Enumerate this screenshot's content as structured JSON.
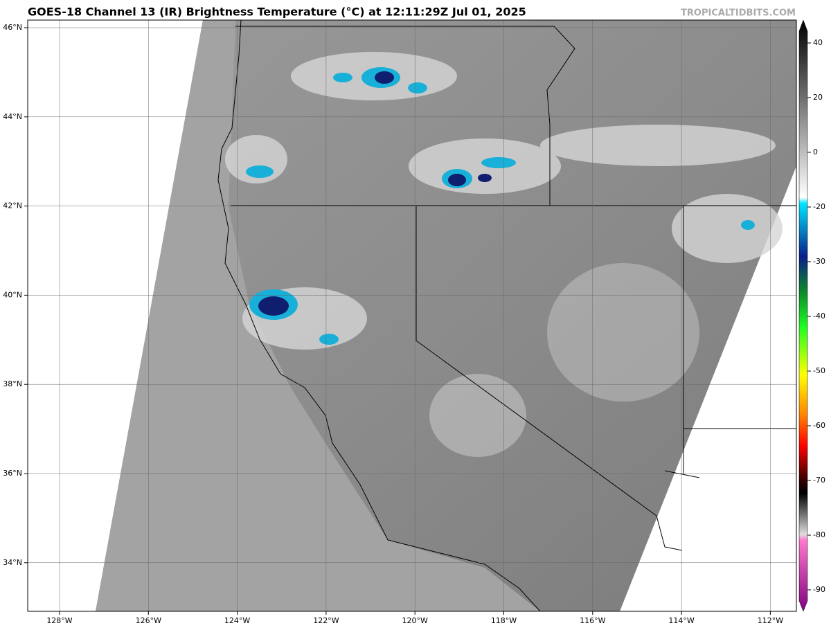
{
  "header": {
    "title": "GOES-18 Channel 13 (IR) Brightness Temperature (°C) at 12:11:29Z Jul 01, 2025",
    "watermark": "TROPICALTIDBITS.COM"
  },
  "map": {
    "lon_ticks": [
      "128°W",
      "126°W",
      "124°W",
      "122°W",
      "120°W",
      "118°W",
      "116°W",
      "114°W",
      "112°W"
    ],
    "lat_ticks": [
      "46°N",
      "44°N",
      "42°N",
      "40°N",
      "38°N",
      "36°N",
      "34°N"
    ]
  },
  "colorbar": {
    "ticks": [
      40,
      20,
      0,
      -20,
      -30,
      -40,
      -50,
      -60,
      -70,
      -80,
      -90
    ]
  }
}
